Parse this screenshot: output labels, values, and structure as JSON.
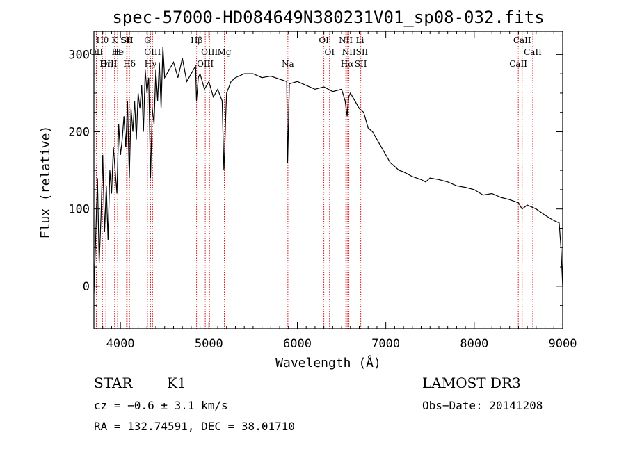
{
  "chart_data": {
    "type": "line",
    "title": "spec-57000-HD084649N380231V01_sp08-032.fits",
    "xlabel": "Wavelength (Å)",
    "ylabel": "Flux (relative)",
    "xlim": [
      3700,
      9000
    ],
    "ylim": [
      -55,
      330
    ],
    "xticks": [
      4000,
      5000,
      6000,
      7000,
      8000,
      9000
    ],
    "yticks": [
      0,
      100,
      200,
      300
    ],
    "grid": false,
    "spectrum": {
      "name": "flux",
      "x": [
        3700,
        3720,
        3740,
        3760,
        3780,
        3800,
        3820,
        3840,
        3860,
        3880,
        3900,
        3920,
        3940,
        3960,
        3980,
        4000,
        4020,
        4040,
        4060,
        4080,
        4100,
        4120,
        4140,
        4160,
        4180,
        4200,
        4220,
        4240,
        4260,
        4280,
        4300,
        4320,
        4340,
        4360,
        4380,
        4400,
        4420,
        4440,
        4460,
        4480,
        4500,
        4550,
        4600,
        4650,
        4700,
        4750,
        4800,
        4850,
        4860,
        4880,
        4900,
        4950,
        5000,
        5050,
        5100,
        5150,
        5170,
        5180,
        5190,
        5200,
        5250,
        5300,
        5400,
        5500,
        5600,
        5700,
        5800,
        5880,
        5890,
        5896,
        5910,
        6000,
        6100,
        6200,
        6300,
        6400,
        6500,
        6540,
        6563,
        6580,
        6600,
        6650,
        6700,
        6750,
        6800,
        6850,
        6900,
        6950,
        7000,
        7050,
        7100,
        7150,
        7200,
        7250,
        7300,
        7350,
        7400,
        7450,
        7500,
        7600,
        7700,
        7800,
        7900,
        8000,
        8100,
        8200,
        8300,
        8400,
        8500,
        8540,
        8600,
        8700,
        8800,
        8900,
        8960,
        8980,
        9000
      ],
      "y": [
        -10,
        60,
        140,
        30,
        90,
        170,
        70,
        130,
        60,
        150,
        120,
        180,
        150,
        120,
        210,
        170,
        190,
        220,
        180,
        240,
        140,
        230,
        200,
        240,
        190,
        250,
        230,
        260,
        200,
        280,
        250,
        270,
        140,
        230,
        210,
        280,
        240,
        290,
        230,
        310,
        270,
        280,
        290,
        270,
        295,
        265,
        275,
        285,
        240,
        270,
        275,
        255,
        265,
        245,
        255,
        240,
        150,
        180,
        220,
        250,
        265,
        270,
        275,
        275,
        270,
        272,
        268,
        265,
        160,
        190,
        262,
        265,
        260,
        255,
        258,
        252,
        255,
        240,
        220,
        245,
        250,
        240,
        230,
        225,
        205,
        200,
        190,
        180,
        170,
        160,
        155,
        150,
        148,
        145,
        142,
        140,
        138,
        135,
        140,
        138,
        135,
        130,
        128,
        125,
        118,
        120,
        115,
        112,
        108,
        100,
        105,
        100,
        92,
        85,
        82,
        50,
        0
      ]
    },
    "annotations": [
      {
        "label": "Hθ",
        "x": 3797
      },
      {
        "label": "OII",
        "x": 3727
      },
      {
        "label": "OIII",
        "x": 3869
      },
      {
        "label": "K",
        "x": 3934
      },
      {
        "label": "He",
        "x": 3970
      },
      {
        "label": "Hη",
        "x": 3835
      },
      {
        "label": "SII",
        "x": 4069
      },
      {
        "label": "H",
        "x": 3968
      },
      {
        "label": "Hδ",
        "x": 4102
      },
      {
        "label": "SII",
        "x": 4076
      },
      {
        "label": "OIII",
        "x": 4363
      },
      {
        "label": "Hγ",
        "x": 4340
      },
      {
        "label": "G",
        "x": 4305
      },
      {
        "label": "OIII",
        "x": 5007
      },
      {
        "label": "OIII",
        "x": 4959
      },
      {
        "label": "Hβ",
        "x": 4861
      },
      {
        "label": "Mg",
        "x": 5175
      },
      {
        "label": "Na",
        "x": 5893
      },
      {
        "label": "OI",
        "x": 6300
      },
      {
        "label": "OI",
        "x": 6364
      },
      {
        "label": "Hα",
        "x": 6563
      },
      {
        "label": "NII",
        "x": 6548
      },
      {
        "label": "NII",
        "x": 6583
      },
      {
        "label": "SII",
        "x": 6717
      },
      {
        "label": "Li",
        "x": 6708
      },
      {
        "label": "SII",
        "x": 6731
      },
      {
        "label": "CaII",
        "x": 8498
      },
      {
        "label": "CaII",
        "x": 8542
      },
      {
        "label": "CaII",
        "x": 8662
      }
    ],
    "line_color": "#000000",
    "marker_color": "#cc0000"
  },
  "info": {
    "class": "STAR",
    "subclass": "K1",
    "survey": "LAMOST DR3",
    "cz": "cz = −0.6 ± 3.1 km/s",
    "obs_date": "Obs−Date: 20141208",
    "radec": "RA = 132.74591, DEC =  38.01710"
  }
}
